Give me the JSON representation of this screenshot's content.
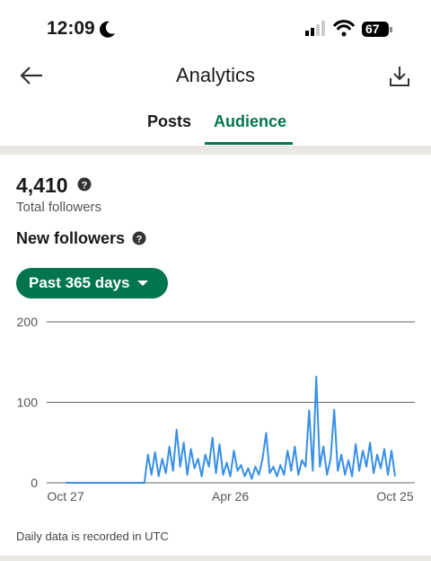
{
  "status_bar": {
    "time": "12:09",
    "battery": "67"
  },
  "header": {
    "title": "Analytics"
  },
  "tabs": [
    "Posts",
    "Audience"
  ],
  "summary": {
    "total": "4,410",
    "total_label": "Total followers"
  },
  "section_title": "New followers",
  "range_button": "Past 365 days",
  "chart_data": {
    "type": "line",
    "color": "#378fe9",
    "categories": [
      "Oct 27",
      null,
      null,
      null,
      null,
      null,
      null,
      null,
      null,
      null,
      null,
      null,
      null,
      null,
      null,
      null,
      null,
      null,
      null,
      null,
      null,
      null,
      null,
      null,
      null,
      null,
      null,
      null,
      null,
      null,
      null,
      null,
      null,
      null,
      null,
      null,
      null,
      null,
      null,
      null,
      null,
      null,
      null,
      null,
      null,
      null,
      "Apr 26",
      null,
      null,
      null,
      null,
      null,
      null,
      null,
      null,
      null,
      null,
      null,
      null,
      null,
      null,
      null,
      null,
      null,
      null,
      null,
      null,
      null,
      null,
      null,
      null,
      null,
      null,
      null,
      null,
      null,
      null,
      null,
      null,
      null,
      null,
      null,
      null,
      null,
      null,
      null,
      null,
      null,
      null,
      null,
      null,
      null,
      "Oct 25"
    ],
    "values": [
      0,
      0,
      0,
      0,
      0,
      0,
      0,
      0,
      0,
      0,
      0,
      0,
      0,
      0,
      0,
      0,
      0,
      0,
      0,
      0,
      0,
      0,
      0,
      35,
      10,
      38,
      8,
      30,
      12,
      45,
      15,
      66,
      20,
      50,
      10,
      42,
      18,
      30,
      8,
      35,
      20,
      56,
      12,
      48,
      10,
      25,
      8,
      40,
      15,
      22,
      8,
      18,
      5,
      20,
      10,
      30,
      62,
      12,
      20,
      8,
      22,
      10,
      40,
      15,
      45,
      10,
      28,
      20,
      90,
      15,
      132,
      20,
      45,
      10,
      30,
      91,
      15,
      35,
      10,
      28,
      8,
      48,
      15,
      40,
      20,
      50,
      12,
      35,
      18,
      42,
      10,
      40,
      8
    ],
    "ylim": [
      0,
      200
    ],
    "yticks": [
      0,
      100,
      200
    ],
    "grid": true
  },
  "footer": "Daily data is recorded in UTC"
}
